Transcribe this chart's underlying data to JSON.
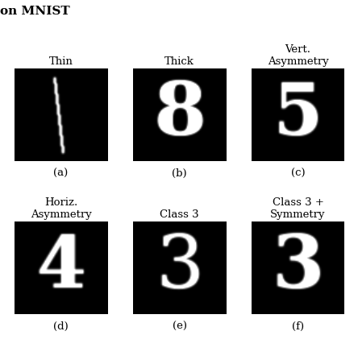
{
  "title": "on MNIST",
  "title_fontsize": 9,
  "col_titles_row1": [
    "Thin",
    "Thick",
    "Vert.\nAsymmetry"
  ],
  "col_titles_row2": [
    "Horiz.\nAsymmetry",
    "Class 3",
    "Class 3 +\nSymmetry"
  ],
  "sub_labels": [
    "(a)",
    "(b)",
    "(c)",
    "(d)",
    "(e)",
    "(f)"
  ],
  "bg_color": "#ffffff",
  "label_fontsize": 9.5,
  "sublabel_fontsize": 9.5
}
